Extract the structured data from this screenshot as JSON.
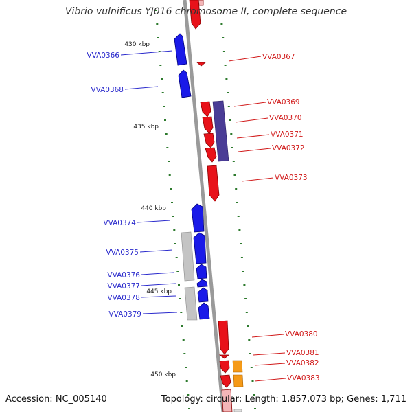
{
  "title": "Vibrio vulnificus YJ016 chromosome II, complete sequence",
  "accession": "Accession: NC_005140",
  "topology": "Topology: circular; Length: 1,857,073 bp; Genes: 1,711",
  "kbp_labels": [
    {
      "label": "430 kbp",
      "kbp": 430
    },
    {
      "label": "435 kbp",
      "kbp": 435
    },
    {
      "label": "440 kbp",
      "kbp": 440
    },
    {
      "label": "445 kbp",
      "kbp": 445
    },
    {
      "label": "450 kbp",
      "kbp": 450
    }
  ],
  "colors": {
    "backbone": "#9a9a9a",
    "forward_cds": "#e8121a",
    "reverse_cds": "#1a1ae8",
    "feature_gray": "#c4c4c4",
    "feature_purple": "#4a3c96",
    "feature_orange": "#f59a18",
    "tick_green": "#2d7a2d",
    "label_blue": "#2a2acc",
    "label_red": "#d11a1a"
  },
  "left_labels": [
    {
      "text": "VVA0366",
      "kbp": 430.8
    },
    {
      "text": "VVA0368",
      "kbp": 432.5
    },
    {
      "text": "VVA0374",
      "kbp": 441.1
    },
    {
      "text": "VVA0375",
      "kbp": 442.9
    },
    {
      "text": "VVA0376",
      "kbp": 444.0
    },
    {
      "text": "VVA0377",
      "kbp": 444.6
    },
    {
      "text": "VVA0378",
      "kbp": 445.3
    },
    {
      "text": "VVA0379",
      "kbp": 446.2
    }
  ],
  "right_labels": [
    {
      "text": "VVA0367",
      "kbp": 430.6
    },
    {
      "text": "VVA0369",
      "kbp": 434.1
    },
    {
      "text": "VVA0370",
      "kbp": 434.9
    },
    {
      "text": "VVA0371",
      "kbp": 435.8
    },
    {
      "text": "VVA0372",
      "kbp": 436.6
    },
    {
      "text": "VVA0373",
      "kbp": 438.3
    },
    {
      "text": "VVA0380",
      "kbp": 447.3
    },
    {
      "text": "VVA0381",
      "kbp": 448.3
    },
    {
      "text": "VVA0382",
      "kbp": 448.9
    },
    {
      "text": "VVA0383",
      "kbp": 449.7
    }
  ]
}
